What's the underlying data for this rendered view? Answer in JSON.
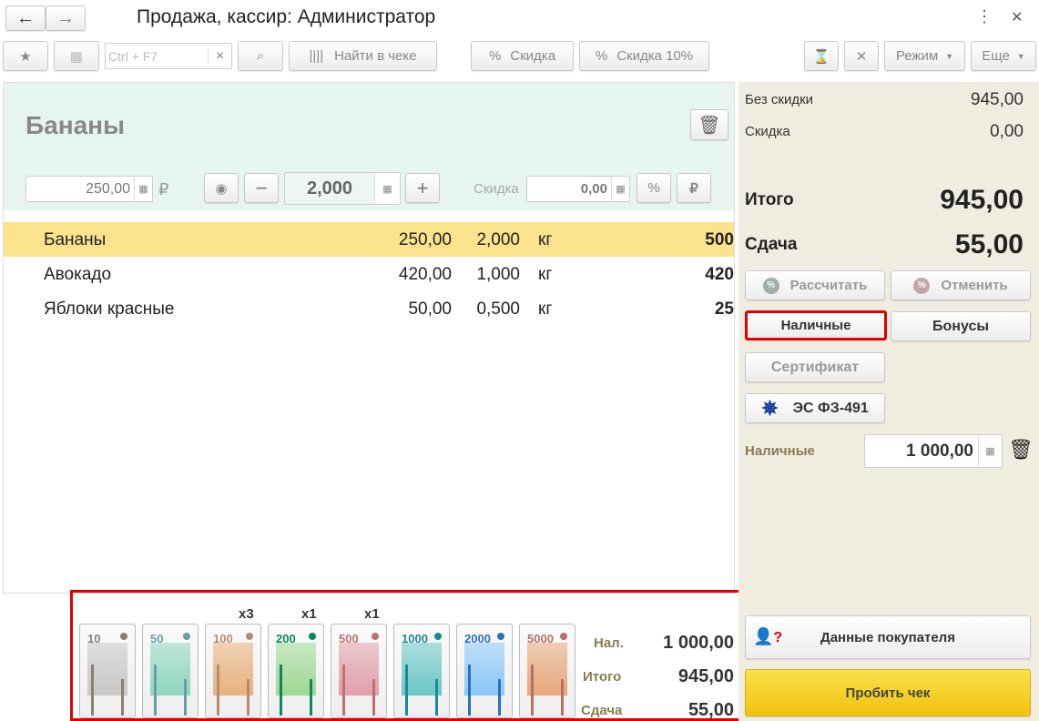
{
  "window": {
    "title": "Продажа, кассир: Администратор"
  },
  "toolbar": {
    "search_placeholder": "Ctrl + F7",
    "find_in_receipt": "Найти в чеке",
    "discount": "Скидка",
    "discount10": "Скидка 10%",
    "mode": "Режим",
    "more": "Еще"
  },
  "item": {
    "name": "Бананы",
    "price": "250,00",
    "quantity": "2,000",
    "discount_label": "Скидка",
    "discount": "0,00",
    "currency": "₽"
  },
  "receipt": {
    "rows": [
      {
        "name": "Бананы",
        "price": "250,00",
        "qty": "2,000",
        "unit": "кг",
        "sum": "500",
        "selected": true
      },
      {
        "name": "Авокадо",
        "price": "420,00",
        "qty": "1,000",
        "unit": "кг",
        "sum": "420",
        "selected": false
      },
      {
        "name": "Яблоки красные",
        "price": "50,00",
        "qty": "0,500",
        "unit": "кг",
        "sum": "25",
        "selected": false
      }
    ]
  },
  "cash": {
    "notes": [
      {
        "value": "10",
        "count": "",
        "color": "#c9c6c6",
        "accent": "#8a7f70"
      },
      {
        "value": "50",
        "count": "",
        "color": "#8fd6c0",
        "accent": "#6a9ea6"
      },
      {
        "value": "100",
        "count": "x3",
        "color": "#e8b27d",
        "accent": "#b88a70"
      },
      {
        "value": "200",
        "count": "x1",
        "color": "#9fd894",
        "accent": "#0a8a5a"
      },
      {
        "value": "500",
        "count": "x1",
        "color": "#e0a0a8",
        "accent": "#c07070"
      },
      {
        "value": "1000",
        "count": "",
        "color": "#6cc6c6",
        "accent": "#1a8a9a"
      },
      {
        "value": "2000",
        "count": "",
        "color": "#8cc8f8",
        "accent": "#2a70c0"
      },
      {
        "value": "5000",
        "count": "",
        "color": "#e6a77a",
        "accent": "#b87060"
      }
    ],
    "summary": {
      "cash_label": "Нал.",
      "cash": "1 000,00",
      "total_label": "Итого",
      "total": "945,00",
      "change_label": "Сдача",
      "change": "55,00"
    }
  },
  "right": {
    "no_discount_label": "Без скидки",
    "no_discount": "945,00",
    "discount_label": "Скидка",
    "discount": "0,00",
    "total_label": "Итого",
    "total": "945,00",
    "change_label": "Сдача",
    "change": "55,00",
    "calculate": "Рассчитать",
    "cancel": "Отменить",
    "cash_btn": "Наличные",
    "bonus_btn": "Бонусы",
    "certificate": "Сертификат",
    "es": "ЭС ФЗ-491",
    "cash_label": "Наличные",
    "cash_amount": "1 000,00",
    "customer": "Данные покупателя",
    "print": "Пробить чек"
  }
}
